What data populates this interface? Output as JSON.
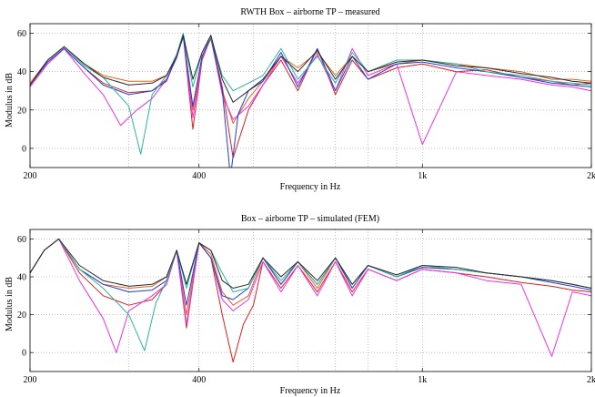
{
  "chart_data": [
    {
      "type": "line",
      "title": "RWTH Box – airborne TP – measured",
      "xlabel": "Frequency in Hz",
      "ylabel": "Modulus in dB",
      "xscale": "log",
      "xlim": [
        200,
        2000
      ],
      "ylim": [
        -10,
        65
      ],
      "xticks": [
        {
          "value": 200,
          "label": "200"
        },
        {
          "value": 400,
          "label": "400"
        },
        {
          "value": 1000,
          "label": "1k"
        },
        {
          "value": 2000,
          "label": "2k"
        }
      ],
      "yticks": [
        {
          "value": 0,
          "label": "0"
        },
        {
          "value": 20,
          "label": "20"
        },
        {
          "value": 40,
          "label": "40"
        },
        {
          "value": 60,
          "label": "60"
        }
      ],
      "grid": true,
      "series": [
        {
          "color": "#e8601c",
          "x": [
            200,
            215,
            230,
            250,
            270,
            300,
            330,
            350,
            365,
            375,
            390,
            405,
            420,
            440,
            460,
            490,
            520,
            560,
            600,
            650,
            700,
            750,
            800,
            900,
            1000,
            1150,
            1300,
            1500,
            1700,
            1850,
            2000
          ],
          "y": [
            34,
            46,
            53,
            44,
            38,
            35,
            35,
            38,
            48,
            60,
            20,
            48,
            57,
            30,
            13,
            26,
            35,
            48,
            42,
            50,
            38,
            48,
            40,
            44,
            46,
            44,
            42,
            40,
            36,
            36,
            35
          ]
        },
        {
          "color": "#dd1f1f",
          "x": [
            200,
            215,
            230,
            250,
            270,
            300,
            330,
            350,
            365,
            375,
            390,
            405,
            420,
            440,
            460,
            490,
            520,
            560,
            600,
            650,
            700,
            750,
            800,
            900,
            1000,
            1150,
            1300,
            1500,
            1700,
            1850,
            2000
          ],
          "y": [
            33,
            45,
            52,
            42,
            34,
            29,
            30,
            36,
            48,
            59,
            10,
            46,
            58,
            32,
            -5,
            20,
            33,
            46,
            30,
            52,
            28,
            46,
            36,
            42,
            44,
            40,
            41,
            37,
            35,
            33,
            34
          ]
        },
        {
          "color": "#e833e8",
          "x": [
            200,
            215,
            230,
            250,
            270,
            290,
            310,
            330,
            350,
            365,
            375,
            390,
            405,
            420,
            440,
            460,
            490,
            520,
            560,
            600,
            650,
            700,
            750,
            800,
            900,
            1000,
            1150,
            1300,
            1500,
            1700,
            1850,
            2000
          ],
          "y": [
            32,
            44,
            52,
            39,
            28,
            12,
            20,
            26,
            36,
            47,
            59,
            16,
            47,
            58,
            28,
            15,
            22,
            33,
            48,
            34,
            49,
            30,
            52,
            38,
            44,
            2,
            40,
            38,
            36,
            33,
            32,
            30
          ]
        },
        {
          "color": "#1f3fd8",
          "x": [
            200,
            215,
            230,
            250,
            270,
            300,
            330,
            350,
            365,
            375,
            390,
            405,
            420,
            440,
            455,
            470,
            490,
            520,
            560,
            600,
            650,
            700,
            750,
            800,
            900,
            1000,
            1150,
            1300,
            1500,
            1700,
            1850,
            2000
          ],
          "y": [
            33,
            45,
            52,
            42,
            33,
            28,
            30,
            35,
            48,
            58,
            22,
            48,
            58,
            30,
            -15,
            18,
            30,
            35,
            50,
            32,
            52,
            30,
            48,
            36,
            44,
            45,
            42,
            40,
            37,
            34,
            33,
            32
          ]
        },
        {
          "color": "#2ab59a",
          "x": [
            200,
            215,
            230,
            250,
            270,
            300,
            315,
            330,
            350,
            365,
            375,
            390,
            405,
            420,
            440,
            460,
            490,
            520,
            560,
            600,
            650,
            700,
            750,
            800,
            900,
            1000,
            1150,
            1300,
            1500,
            1700,
            1850,
            2000
          ],
          "y": [
            33,
            46,
            53,
            43,
            37,
            22,
            -3,
            28,
            38,
            49,
            60,
            32,
            50,
            58,
            38,
            30,
            34,
            38,
            52,
            36,
            48,
            34,
            50,
            40,
            46,
            46,
            44,
            40,
            38,
            35,
            34,
            33
          ]
        },
        {
          "color": "#2a2a2a",
          "x": [
            200,
            215,
            230,
            250,
            270,
            300,
            330,
            350,
            365,
            375,
            390,
            405,
            420,
            440,
            460,
            490,
            520,
            560,
            600,
            650,
            700,
            750,
            800,
            900,
            1000,
            1150,
            1300,
            1500,
            1700,
            1850,
            2000
          ],
          "y": [
            33,
            46,
            53,
            44,
            37,
            33,
            34,
            38,
            48,
            59,
            36,
            50,
            59,
            36,
            24,
            30,
            36,
            48,
            40,
            51,
            36,
            48,
            40,
            45,
            46,
            43,
            42,
            39,
            37,
            35,
            34
          ]
        }
      ]
    },
    {
      "type": "line",
      "title": "Box – airborne TP – simulated (FEM)",
      "xlabel": "Frequency in Hz",
      "ylabel": "Modulus in dB",
      "xscale": "log",
      "xlim": [
        200,
        2000
      ],
      "ylim": [
        -10,
        65
      ],
      "xticks": [
        {
          "value": 200,
          "label": "200"
        },
        {
          "value": 400,
          "label": "400"
        },
        {
          "value": 1000,
          "label": "1k"
        },
        {
          "value": 2000,
          "label": "2k"
        }
      ],
      "yticks": [
        {
          "value": 0,
          "label": "0"
        },
        {
          "value": 20,
          "label": "20"
        },
        {
          "value": 40,
          "label": "40"
        },
        {
          "value": 60,
          "label": "60"
        }
      ],
      "grid": true,
      "series": [
        {
          "color": "#e8601c",
          "x": [
            200,
            212,
            225,
            245,
            270,
            300,
            330,
            350,
            365,
            380,
            400,
            420,
            440,
            460,
            490,
            520,
            560,
            600,
            650,
            700,
            750,
            800,
            900,
            1000,
            1150,
            1300,
            1500,
            1700,
            1850,
            2000
          ],
          "y": [
            42,
            54,
            60,
            44,
            36,
            34,
            35,
            40,
            54,
            20,
            58,
            52,
            32,
            25,
            30,
            50,
            36,
            48,
            34,
            50,
            34,
            46,
            40,
            45,
            44,
            42,
            40,
            38,
            36,
            34
          ]
        },
        {
          "color": "#dd1f1f",
          "x": [
            200,
            212,
            225,
            245,
            270,
            300,
            330,
            350,
            365,
            380,
            400,
            420,
            440,
            460,
            480,
            500,
            520,
            560,
            600,
            650,
            700,
            750,
            800,
            900,
            1000,
            1150,
            1300,
            1500,
            1700,
            1850,
            2000
          ],
          "y": [
            42,
            54,
            60,
            42,
            30,
            25,
            28,
            36,
            54,
            13,
            58,
            50,
            20,
            -5,
            15,
            25,
            48,
            34,
            46,
            32,
            48,
            32,
            44,
            38,
            44,
            42,
            40,
            37,
            35,
            33,
            32
          ]
        },
        {
          "color": "#e833e8",
          "x": [
            200,
            212,
            225,
            245,
            270,
            285,
            300,
            330,
            350,
            365,
            380,
            400,
            420,
            440,
            460,
            490,
            520,
            560,
            600,
            650,
            700,
            750,
            800,
            900,
            1000,
            1150,
            1300,
            1500,
            1700,
            1850,
            2000
          ],
          "y": [
            42,
            54,
            60,
            38,
            18,
            0,
            22,
            30,
            36,
            54,
            15,
            58,
            50,
            28,
            22,
            28,
            48,
            32,
            46,
            30,
            48,
            30,
            44,
            38,
            44,
            42,
            38,
            36,
            -2,
            32,
            30
          ]
        },
        {
          "color": "#1f3fd8",
          "x": [
            200,
            212,
            225,
            245,
            270,
            300,
            330,
            350,
            365,
            380,
            400,
            420,
            440,
            460,
            490,
            520,
            560,
            600,
            650,
            700,
            750,
            800,
            900,
            1000,
            1150,
            1300,
            1500,
            1700,
            1850,
            2000
          ],
          "y": [
            42,
            54,
            60,
            44,
            36,
            32,
            33,
            38,
            54,
            25,
            58,
            50,
            30,
            28,
            34,
            50,
            36,
            48,
            36,
            50,
            34,
            46,
            40,
            45,
            44,
            42,
            40,
            37,
            35,
            33
          ]
        },
        {
          "color": "#2ab59a",
          "x": [
            200,
            212,
            225,
            245,
            270,
            300,
            320,
            335,
            350,
            365,
            380,
            400,
            420,
            440,
            460,
            490,
            520,
            560,
            600,
            650,
            700,
            750,
            800,
            900,
            1000,
            1150,
            1300,
            1500,
            1700,
            1850,
            2000
          ],
          "y": [
            42,
            54,
            60,
            44,
            34,
            20,
            1,
            26,
            38,
            54,
            34,
            58,
            54,
            42,
            32,
            34,
            50,
            38,
            48,
            36,
            50,
            36,
            46,
            40,
            46,
            44,
            42,
            40,
            38,
            36,
            34
          ]
        },
        {
          "color": "#2a2a2a",
          "x": [
            200,
            212,
            225,
            245,
            270,
            300,
            330,
            350,
            365,
            380,
            400,
            420,
            440,
            460,
            490,
            520,
            560,
            600,
            650,
            700,
            750,
            800,
            900,
            1000,
            1150,
            1300,
            1500,
            1700,
            1850,
            2000
          ],
          "y": [
            42,
            54,
            60,
            46,
            38,
            35,
            36,
            40,
            54,
            36,
            58,
            54,
            38,
            34,
            36,
            50,
            40,
            48,
            38,
            50,
            36,
            46,
            41,
            46,
            45,
            42,
            40,
            38,
            36,
            34
          ]
        }
      ]
    }
  ]
}
